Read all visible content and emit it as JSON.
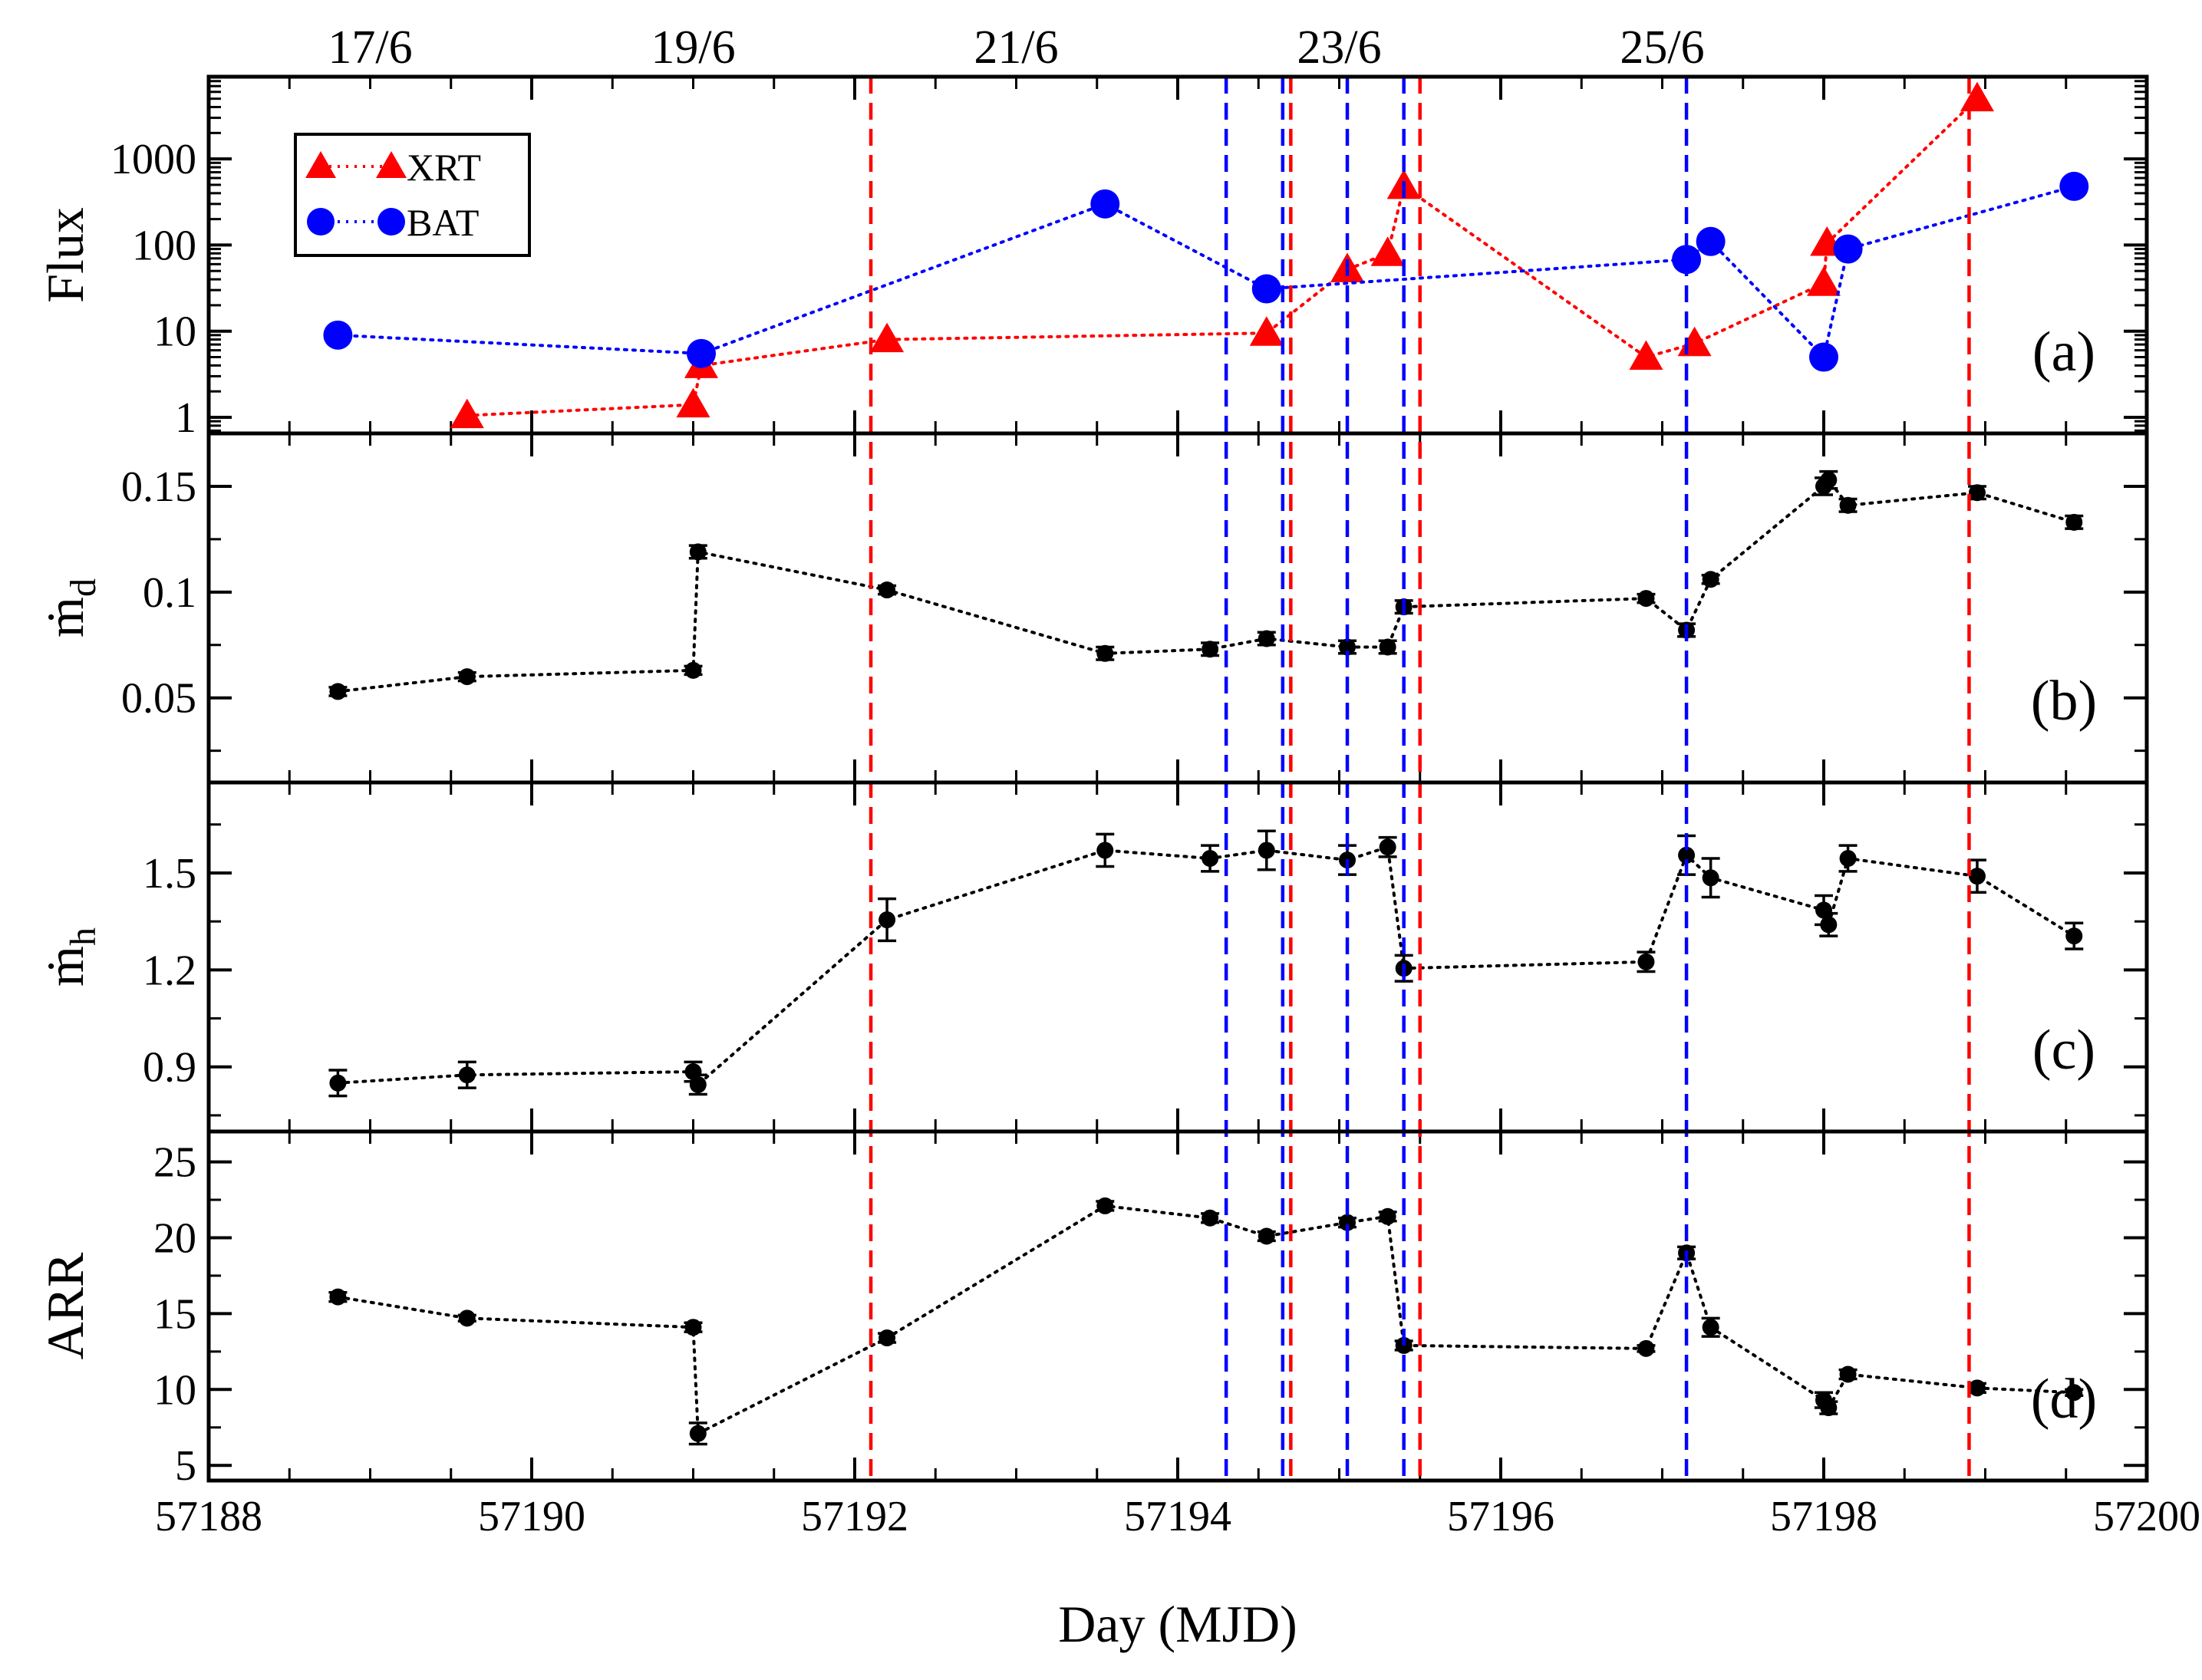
{
  "chart_data": {
    "type": "scatter",
    "title": "",
    "xlabel": "Day (MJD)",
    "xlim": [
      57188,
      57200
    ],
    "x_ticks": [
      "57188",
      "57190",
      "57192",
      "57194",
      "57196",
      "57198",
      "57200"
    ],
    "top_date_labels": [
      {
        "x": 57189.0,
        "label": "17/6"
      },
      {
        "x": 57191.0,
        "label": "19/6"
      },
      {
        "x": 57193.0,
        "label": "21/6"
      },
      {
        "x": 57195.0,
        "label": "23/6"
      },
      {
        "x": 57197.0,
        "label": "25/6"
      }
    ],
    "red_dashed_lines_x": [
      57192.1,
      57194.7,
      57195.5,
      57198.9
    ],
    "blue_dashed_lines_x": [
      57194.3,
      57194.65,
      57195.05,
      57195.4,
      57197.15
    ],
    "colors": {
      "xrt": "#ff0000",
      "bat": "#0000ff",
      "black": "#000000",
      "red_line": "#ff0000",
      "blue_line": "#0000ff"
    },
    "panels": [
      {
        "id": "a",
        "tag": "(a)",
        "ylabel": "Flux",
        "yscale": "log",
        "ylim": [
          0.65,
          9000
        ],
        "y_ticks": [
          "1",
          "10",
          "100",
          "1000"
        ],
        "legend": {
          "position": "top-left",
          "entries": [
            "XRT",
            "BAT"
          ]
        },
        "series": [
          {
            "name": "XRT",
            "marker": "triangle",
            "color": "#ff0000",
            "x": [
              57189.6,
              57191.0,
              57191.05,
              57192.2,
              57194.55,
              57195.05,
              57195.3,
              57195.4,
              57196.9,
              57197.2,
              57198.0,
              57198.02,
              57198.95
            ],
            "y": [
              1.05,
              1.4,
              4.0,
              8.0,
              9.5,
              52,
              80,
              480,
              5.0,
              7.2,
              36,
              105,
              5000
            ]
          },
          {
            "name": "BAT",
            "marker": "circle",
            "color": "#0000ff",
            "x": [
              57188.8,
              57191.05,
              57193.55,
              57194.55,
              57197.15,
              57197.3,
              57198.0,
              57198.15,
              57199.55
            ],
            "y": [
              9.0,
              5.5,
              300,
              31,
              68,
              110,
              5.0,
              90,
              480
            ]
          }
        ]
      },
      {
        "id": "b",
        "tag": "(b)",
        "ylabel_main": "ṁ",
        "ylabel_sub": "d",
        "yscale": "linear",
        "ylim": [
          0.01,
          0.175
        ],
        "y_ticks": [
          "0.05",
          "0.1",
          "0.15"
        ],
        "series": [
          {
            "name": "mdot_d",
            "marker": "circle",
            "color": "#000000",
            "x": [
              57188.8,
              57189.6,
              57191.0,
              57191.03,
              57192.2,
              57193.55,
              57194.2,
              57194.55,
              57195.05,
              57195.3,
              57195.4,
              57196.9,
              57197.15,
              57197.3,
              57198.0,
              57198.03,
              57198.15,
              57198.95,
              57199.55
            ],
            "y": [
              0.053,
              0.06,
              0.063,
              0.119,
              0.101,
              0.071,
              0.073,
              0.078,
              0.074,
              0.074,
              0.093,
              0.097,
              0.082,
              0.106,
              0.15,
              0.153,
              0.141,
              0.147,
              0.133
            ],
            "err": [
              0.002,
              0.002,
              0.002,
              0.003,
              0.002,
              0.003,
              0.003,
              0.003,
              0.003,
              0.003,
              0.003,
              0.002,
              0.003,
              0.002,
              0.004,
              0.004,
              0.003,
              0.003,
              0.003
            ]
          }
        ]
      },
      {
        "id": "c",
        "tag": "(c)",
        "ylabel_main": "ṁ",
        "ylabel_sub": "h",
        "yscale": "linear",
        "ylim": [
          0.7,
          1.78
        ],
        "y_ticks": [
          "0.9",
          "1.2",
          "1.5"
        ],
        "series": [
          {
            "name": "mdot_h",
            "marker": "circle",
            "color": "#000000",
            "x": [
              57188.8,
              57189.6,
              57191.0,
              57191.03,
              57192.2,
              57193.55,
              57194.2,
              57194.55,
              57195.05,
              57195.3,
              57195.4,
              57196.9,
              57197.15,
              57197.3,
              57198.0,
              57198.03,
              57198.15,
              57198.95,
              57199.55
            ],
            "y": [
              0.85,
              0.875,
              0.885,
              0.845,
              1.355,
              1.57,
              1.545,
              1.57,
              1.54,
              1.58,
              1.205,
              1.225,
              1.555,
              1.485,
              1.385,
              1.34,
              1.545,
              1.49,
              1.305
            ],
            "err": [
              0.04,
              0.04,
              0.03,
              0.03,
              0.065,
              0.05,
              0.04,
              0.06,
              0.045,
              0.03,
              0.04,
              0.03,
              0.06,
              0.06,
              0.045,
              0.035,
              0.04,
              0.05,
              0.04
            ]
          }
        ]
      },
      {
        "id": "d",
        "tag": "(d)",
        "ylabel": "ARR",
        "yscale": "linear",
        "ylim": [
          4,
          27
        ],
        "y_ticks": [
          "5",
          "10",
          "15",
          "20",
          "25"
        ],
        "series": [
          {
            "name": "ARR",
            "marker": "circle",
            "color": "#000000",
            "x": [
              57188.8,
              57189.6,
              57191.0,
              57191.03,
              57192.2,
              57193.55,
              57194.2,
              57194.55,
              57195.05,
              57195.3,
              57195.4,
              57196.9,
              57197.15,
              57197.3,
              57198.0,
              57198.03,
              57198.15,
              57198.95,
              57199.55
            ],
            "y": [
              16.1,
              14.7,
              14.1,
              7.1,
              13.4,
              22.1,
              21.3,
              20.1,
              21.0,
              21.4,
              12.9,
              12.7,
              19.0,
              14.1,
              9.3,
              8.8,
              11.0,
              10.1,
              9.8
            ],
            "err": [
              0.3,
              0.2,
              0.3,
              0.7,
              0.3,
              0.3,
              0.3,
              0.3,
              0.3,
              0.3,
              0.3,
              0.2,
              0.4,
              0.6,
              0.5,
              0.4,
              0.3,
              0.3,
              0.2
            ]
          }
        ]
      }
    ]
  }
}
